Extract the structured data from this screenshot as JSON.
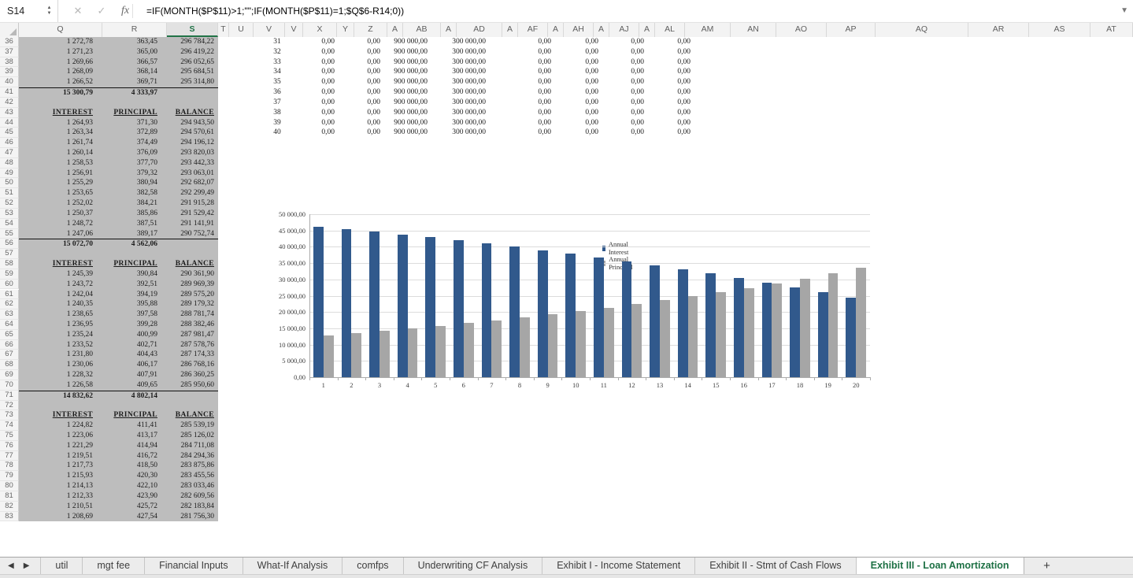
{
  "formula_bar": {
    "name_box": "S14",
    "formula": "=IF(MONTH($P$11)>1;\"\";IF(MONTH($P$11)=1;$Q$6-R14;0))"
  },
  "icons": {
    "cancel": "✕",
    "enter": "✓",
    "fx": "fx",
    "dropdown": "▼",
    "spinner_up": "▲",
    "spinner_down": "▼",
    "nav_left": "◀",
    "nav_right": "▶",
    "add_sheet": "+"
  },
  "grid": {
    "column_headers": [
      "Q",
      "R",
      "S",
      "T",
      "U",
      "V",
      "V",
      "X",
      "Y",
      "Z",
      "A",
      "AB",
      "A",
      "AD",
      "A",
      "AF",
      "A",
      "AH",
      "A",
      "AJ",
      "A",
      "AL",
      "AM",
      "AN",
      "AO",
      "AP",
      "AQ",
      "AR",
      "AS",
      "AT"
    ],
    "selected_column_index": 2,
    "first_row": 36,
    "last_row": 83
  },
  "amortization_table": {
    "header_labels": [
      "INTEREST",
      "PRINCIPAL",
      "BALANCE"
    ],
    "rows": [
      {
        "row": 36,
        "style": "data",
        "cells": [
          "1 272,78",
          "363,45",
          "296 784,22"
        ]
      },
      {
        "row": 37,
        "style": "data",
        "cells": [
          "1 271,23",
          "365,00",
          "296 419,22"
        ]
      },
      {
        "row": 38,
        "style": "data",
        "cells": [
          "1 269,66",
          "366,57",
          "296 052,65"
        ]
      },
      {
        "row": 39,
        "style": "data",
        "cells": [
          "1 268,09",
          "368,14",
          "295 684,51"
        ]
      },
      {
        "row": 40,
        "style": "data",
        "cells": [
          "1 266,52",
          "369,71",
          "295 314,80"
        ]
      },
      {
        "row": 41,
        "style": "sum",
        "cells": [
          "15 300,79",
          "4 333,97",
          ""
        ]
      },
      {
        "row": 42,
        "style": "blank",
        "cells": [
          "",
          "",
          ""
        ]
      },
      {
        "row": 43,
        "style": "header",
        "cells": [
          "INTEREST",
          "PRINCIPAL",
          "BALANCE"
        ]
      },
      {
        "row": 44,
        "style": "data",
        "cells": [
          "1 264,93",
          "371,30",
          "294 943,50"
        ]
      },
      {
        "row": 45,
        "style": "data",
        "cells": [
          "1 263,34",
          "372,89",
          "294 570,61"
        ]
      },
      {
        "row": 46,
        "style": "data",
        "cells": [
          "1 261,74",
          "374,49",
          "294 196,12"
        ]
      },
      {
        "row": 47,
        "style": "data",
        "cells": [
          "1 260,14",
          "376,09",
          "293 820,03"
        ]
      },
      {
        "row": 48,
        "style": "data",
        "cells": [
          "1 258,53",
          "377,70",
          "293 442,33"
        ]
      },
      {
        "row": 49,
        "style": "data",
        "cells": [
          "1 256,91",
          "379,32",
          "293 063,01"
        ]
      },
      {
        "row": 50,
        "style": "data",
        "cells": [
          "1 255,29",
          "380,94",
          "292 682,07"
        ]
      },
      {
        "row": 51,
        "style": "data",
        "cells": [
          "1 253,65",
          "382,58",
          "292 299,49"
        ]
      },
      {
        "row": 52,
        "style": "data",
        "cells": [
          "1 252,02",
          "384,21",
          "291 915,28"
        ]
      },
      {
        "row": 53,
        "style": "data",
        "cells": [
          "1 250,37",
          "385,86",
          "291 529,42"
        ]
      },
      {
        "row": 54,
        "style": "data",
        "cells": [
          "1 248,72",
          "387,51",
          "291 141,91"
        ]
      },
      {
        "row": 55,
        "style": "data",
        "cells": [
          "1 247,06",
          "389,17",
          "290 752,74"
        ]
      },
      {
        "row": 56,
        "style": "sum",
        "cells": [
          "15 072,70",
          "4 562,06",
          ""
        ]
      },
      {
        "row": 57,
        "style": "blank",
        "cells": [
          "",
          "",
          ""
        ]
      },
      {
        "row": 58,
        "style": "header",
        "cells": [
          "INTEREST",
          "PRINCIPAL",
          "BALANCE"
        ]
      },
      {
        "row": 59,
        "style": "data",
        "cells": [
          "1 245,39",
          "390,84",
          "290 361,90"
        ]
      },
      {
        "row": 60,
        "style": "data",
        "cells": [
          "1 243,72",
          "392,51",
          "289 969,39"
        ]
      },
      {
        "row": 61,
        "style": "data",
        "cells": [
          "1 242,04",
          "394,19",
          "289 575,20"
        ]
      },
      {
        "row": 62,
        "style": "data",
        "cells": [
          "1 240,35",
          "395,88",
          "289 179,32"
        ]
      },
      {
        "row": 63,
        "style": "data",
        "cells": [
          "1 238,65",
          "397,58",
          "288 781,74"
        ]
      },
      {
        "row": 64,
        "style": "data",
        "cells": [
          "1 236,95",
          "399,28",
          "288 382,46"
        ]
      },
      {
        "row": 65,
        "style": "data",
        "cells": [
          "1 235,24",
          "400,99",
          "287 981,47"
        ]
      },
      {
        "row": 66,
        "style": "data",
        "cells": [
          "1 233,52",
          "402,71",
          "287 578,76"
        ]
      },
      {
        "row": 67,
        "style": "data",
        "cells": [
          "1 231,80",
          "404,43",
          "287 174,33"
        ]
      },
      {
        "row": 68,
        "style": "data",
        "cells": [
          "1 230,06",
          "406,17",
          "286 768,16"
        ]
      },
      {
        "row": 69,
        "style": "data",
        "cells": [
          "1 228,32",
          "407,91",
          "286 360,25"
        ]
      },
      {
        "row": 70,
        "style": "data",
        "cells": [
          "1 226,58",
          "409,65",
          "285 950,60"
        ]
      },
      {
        "row": 71,
        "style": "sum",
        "cells": [
          "14 832,62",
          "4 802,14",
          ""
        ]
      },
      {
        "row": 72,
        "style": "blank",
        "cells": [
          "",
          "",
          ""
        ]
      },
      {
        "row": 73,
        "style": "header",
        "cells": [
          "INTEREST",
          "PRINCIPAL",
          "BALANCE"
        ]
      },
      {
        "row": 74,
        "style": "data",
        "cells": [
          "1 224,82",
          "411,41",
          "285 539,19"
        ]
      },
      {
        "row": 75,
        "style": "data",
        "cells": [
          "1 223,06",
          "413,17",
          "285 126,02"
        ]
      },
      {
        "row": 76,
        "style": "data",
        "cells": [
          "1 221,29",
          "414,94",
          "284 711,08"
        ]
      },
      {
        "row": 77,
        "style": "data",
        "cells": [
          "1 219,51",
          "416,72",
          "284 294,36"
        ]
      },
      {
        "row": 78,
        "style": "data",
        "cells": [
          "1 217,73",
          "418,50",
          "283 875,86"
        ]
      },
      {
        "row": 79,
        "style": "data",
        "cells": [
          "1 215,93",
          "420,30",
          "283 455,56"
        ]
      },
      {
        "row": 80,
        "style": "data",
        "cells": [
          "1 214,13",
          "422,10",
          "283 033,46"
        ]
      },
      {
        "row": 81,
        "style": "data",
        "cells": [
          "1 212,33",
          "423,90",
          "282 609,56"
        ]
      },
      {
        "row": 82,
        "style": "data",
        "cells": [
          "1 210,51",
          "425,72",
          "282 183,84"
        ]
      },
      {
        "row": 83,
        "style": "data",
        "cells": [
          "1 208,69",
          "427,54",
          "281 756,30"
        ]
      }
    ]
  },
  "right_table": {
    "start_row": 36,
    "periods": [
      31,
      32,
      33,
      34,
      35,
      36,
      37,
      38,
      39,
      40
    ],
    "row_values": [
      "0,00",
      "0,00",
      "900 000,00",
      "300 000,00",
      "0,00",
      "0,00",
      "0,00",
      "0,00"
    ]
  },
  "chart_data": {
    "type": "bar",
    "title": "",
    "categories": [
      1,
      2,
      3,
      4,
      5,
      6,
      7,
      8,
      9,
      10,
      11,
      12,
      13,
      14,
      15,
      16,
      17,
      18,
      19,
      20
    ],
    "series": [
      {
        "name": "Annual Interest",
        "color": "#31598C",
        "values": [
          46200,
          45400,
          44600,
          43800,
          42900,
          42000,
          41000,
          40000,
          38900,
          37900,
          36800,
          35600,
          34400,
          33100,
          31800,
          30400,
          29000,
          27500,
          26000,
          24500
        ]
      },
      {
        "name": "Annual Principal",
        "color": "#A6A6A6",
        "values": [
          12800,
          13500,
          14300,
          15000,
          15800,
          16600,
          17500,
          18400,
          19300,
          20300,
          21300,
          22400,
          23600,
          24800,
          26000,
          27400,
          28800,
          30300,
          31900,
          33600
        ]
      }
    ],
    "ylim": [
      0,
      50000
    ],
    "ytick_step": 5000,
    "ytick_labels": [
      "0,00",
      "5 000,00",
      "10 000,00",
      "15 000,00",
      "20 000,00",
      "25 000,00",
      "30 000,00",
      "35 000,00",
      "40 000,00",
      "45 000,00",
      "50 000,00"
    ],
    "grid": true,
    "legend_position": "inside-right"
  },
  "sheet_tabs": {
    "labels": [
      "util",
      "mgt fee",
      "Financial Inputs",
      "What-If Analysis",
      "comfps",
      "Underwriting CF Analysis",
      "Exhibit I - Income Statement",
      "Exhibit II - Stmt of Cash Flows",
      "Exhibit III - Loan Amortization"
    ],
    "active_index": 8
  },
  "colors": {
    "accent_green": "#217346",
    "bar_blue": "#31598C",
    "bar_gray": "#A6A6A6",
    "block_gray": "#BDBDBD"
  }
}
